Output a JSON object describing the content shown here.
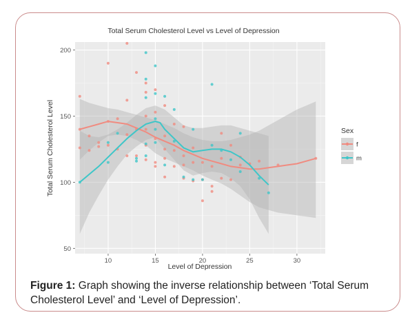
{
  "figure_caption": {
    "label": "Figure 1:",
    "text": " Graph showing the inverse relationship between ‘Total Serum Cholesterol Level’ and ‘Level of Depression’."
  },
  "chart_data": {
    "type": "scatter",
    "title": "Total Serum Cholesterol Level vs Level of Depression",
    "xlabel": "Level of Depression",
    "ylabel": "Total Serum Cholesterol Level",
    "xlim": [
      6.5,
      33
    ],
    "ylim": [
      46,
      206
    ],
    "xticks": [
      10,
      15,
      20,
      25,
      30
    ],
    "yticks": [
      50,
      100,
      150,
      200
    ],
    "grid": true,
    "legend": {
      "title": "Sex",
      "position": "right"
    },
    "colors": {
      "f": "#f08b80",
      "m": "#3ec6c8",
      "panel": "#ebebeb",
      "ribbon": "#b4b4b4"
    },
    "series": [
      {
        "name": "f",
        "points": [
          [
            7,
            165
          ],
          [
            7,
            140
          ],
          [
            7,
            126
          ],
          [
            8,
            124
          ],
          [
            8,
            135
          ],
          [
            9,
            127
          ],
          [
            9,
            130
          ],
          [
            10,
            190
          ],
          [
            10,
            146
          ],
          [
            10,
            128
          ],
          [
            11,
            148
          ],
          [
            11,
            125
          ],
          [
            12,
            205
          ],
          [
            12,
            162
          ],
          [
            12,
            136
          ],
          [
            12,
            120
          ],
          [
            13,
            183
          ],
          [
            13,
            140
          ],
          [
            13,
            120
          ],
          [
            14,
            175
          ],
          [
            14,
            168
          ],
          [
            14,
            150
          ],
          [
            14,
            140
          ],
          [
            14,
            128
          ],
          [
            14,
            117
          ],
          [
            15,
            170
          ],
          [
            15,
            153
          ],
          [
            15,
            133
          ],
          [
            15,
            115
          ],
          [
            15,
            112
          ],
          [
            16,
            158
          ],
          [
            16,
            135
          ],
          [
            16,
            125
          ],
          [
            16,
            118
          ],
          [
            16,
            104
          ],
          [
            17,
            144
          ],
          [
            17,
            124
          ],
          [
            17,
            112
          ],
          [
            18,
            142
          ],
          [
            18,
            120
          ],
          [
            18,
            113
          ],
          [
            18,
            103
          ],
          [
            19,
            126
          ],
          [
            19,
            115
          ],
          [
            19,
            101
          ],
          [
            20,
            115
          ],
          [
            20,
            102
          ],
          [
            20,
            86
          ],
          [
            21,
            112
          ],
          [
            21,
            97
          ],
          [
            21,
            93
          ],
          [
            22,
            137
          ],
          [
            22,
            118
          ],
          [
            22,
            103
          ],
          [
            23,
            128
          ],
          [
            23,
            102
          ],
          [
            24,
            119
          ],
          [
            24,
            113
          ],
          [
            25,
            114
          ],
          [
            26,
            116
          ],
          [
            28,
            113
          ],
          [
            32,
            118
          ]
        ],
        "trend": [
          [
            7,
            140
          ],
          [
            8,
            142
          ],
          [
            9,
            144
          ],
          [
            10,
            146
          ],
          [
            11,
            145
          ],
          [
            12,
            144
          ],
          [
            13,
            141
          ],
          [
            14,
            138
          ],
          [
            15,
            134
          ],
          [
            16,
            131
          ],
          [
            17,
            128
          ],
          [
            18,
            124
          ],
          [
            19,
            121
          ],
          [
            20,
            118
          ],
          [
            21,
            116
          ],
          [
            22,
            114
          ],
          [
            23,
            112
          ],
          [
            24,
            111
          ],
          [
            25,
            110
          ],
          [
            26,
            110
          ],
          [
            27,
            111
          ],
          [
            28,
            112
          ],
          [
            29,
            113
          ],
          [
            30,
            114
          ],
          [
            31,
            116
          ],
          [
            32,
            118
          ]
        ]
      },
      {
        "name": "m",
        "points": [
          [
            7,
            100
          ],
          [
            10,
            115
          ],
          [
            10,
            130
          ],
          [
            11,
            137
          ],
          [
            13,
            118
          ],
          [
            13,
            116
          ],
          [
            14,
            198
          ],
          [
            14,
            178
          ],
          [
            14,
            164
          ],
          [
            14,
            129
          ],
          [
            14,
            120
          ],
          [
            15,
            188
          ],
          [
            15,
            167
          ],
          [
            15,
            148
          ],
          [
            15,
            140
          ],
          [
            15,
            130
          ],
          [
            16,
            165
          ],
          [
            16,
            113
          ],
          [
            17,
            155
          ],
          [
            17,
            131
          ],
          [
            18,
            104
          ],
          [
            19,
            140
          ],
          [
            19,
            102
          ],
          [
            20,
            102
          ],
          [
            21,
            174
          ],
          [
            21,
            128
          ],
          [
            22,
            124
          ],
          [
            23,
            117
          ],
          [
            24,
            137
          ],
          [
            24,
            108
          ],
          [
            26,
            103
          ],
          [
            27,
            92
          ]
        ],
        "trend": [
          [
            7,
            100
          ],
          [
            8,
            106
          ],
          [
            9,
            112
          ],
          [
            10,
            119
          ],
          [
            11,
            126
          ],
          [
            12,
            133
          ],
          [
            13,
            139
          ],
          [
            14,
            144
          ],
          [
            15,
            146
          ],
          [
            15.5,
            145
          ],
          [
            16,
            140
          ],
          [
            17,
            133
          ],
          [
            18,
            126
          ],
          [
            19,
            123
          ],
          [
            20,
            124
          ],
          [
            21,
            125
          ],
          [
            22,
            125
          ],
          [
            23,
            123
          ],
          [
            24,
            119
          ],
          [
            25,
            113
          ],
          [
            26,
            105
          ],
          [
            27,
            98
          ]
        ]
      }
    ],
    "bands": {
      "f": {
        "upper": [
          [
            7,
            163
          ],
          [
            8,
            160
          ],
          [
            9,
            158
          ],
          [
            10,
            156
          ],
          [
            11,
            155
          ],
          [
            12,
            153
          ],
          [
            13,
            151
          ],
          [
            14,
            149
          ],
          [
            15,
            147
          ],
          [
            16,
            144
          ],
          [
            17,
            141
          ],
          [
            18,
            137
          ],
          [
            19,
            134
          ],
          [
            20,
            132
          ],
          [
            21,
            131
          ],
          [
            22,
            131
          ],
          [
            23,
            132
          ],
          [
            24,
            134
          ],
          [
            25,
            136
          ],
          [
            26,
            139
          ],
          [
            27,
            143
          ],
          [
            28,
            147
          ],
          [
            29,
            151
          ],
          [
            30,
            155
          ],
          [
            31,
            158
          ],
          [
            32,
            161
          ]
        ],
        "lower": [
          [
            7,
            117
          ],
          [
            8,
            124
          ],
          [
            9,
            130
          ],
          [
            10,
            135
          ],
          [
            11,
            136
          ],
          [
            12,
            135
          ],
          [
            13,
            132
          ],
          [
            14,
            128
          ],
          [
            15,
            122
          ],
          [
            16,
            118
          ],
          [
            17,
            115
          ],
          [
            18,
            112
          ],
          [
            19,
            109
          ],
          [
            20,
            105
          ],
          [
            21,
            102
          ],
          [
            22,
            99
          ],
          [
            23,
            95
          ],
          [
            24,
            90
          ],
          [
            25,
            85
          ],
          [
            26,
            81
          ],
          [
            27,
            79
          ],
          [
            28,
            77
          ],
          [
            29,
            76
          ],
          [
            30,
            75
          ],
          [
            31,
            74
          ],
          [
            32,
            73
          ]
        ]
      },
      "m": {
        "upper": [
          [
            7,
            139
          ],
          [
            8,
            135
          ],
          [
            9,
            134
          ],
          [
            10,
            136
          ],
          [
            11,
            140
          ],
          [
            12,
            145
          ],
          [
            13,
            151
          ],
          [
            14,
            156
          ],
          [
            15,
            158
          ],
          [
            16,
            155
          ],
          [
            17,
            149
          ],
          [
            18,
            143
          ],
          [
            19,
            141
          ],
          [
            20,
            141
          ],
          [
            21,
            142
          ],
          [
            22,
            143
          ],
          [
            23,
            143
          ],
          [
            24,
            141
          ],
          [
            25,
            139
          ],
          [
            26,
            137
          ],
          [
            27,
            135
          ]
        ],
        "lower": [
          [
            7,
            61
          ],
          [
            8,
            77
          ],
          [
            9,
            90
          ],
          [
            10,
            102
          ],
          [
            11,
            112
          ],
          [
            12,
            121
          ],
          [
            13,
            127
          ],
          [
            14,
            132
          ],
          [
            15,
            134
          ],
          [
            16,
            125
          ],
          [
            17,
            117
          ],
          [
            18,
            109
          ],
          [
            19,
            105
          ],
          [
            20,
            107
          ],
          [
            21,
            108
          ],
          [
            22,
            107
          ],
          [
            23,
            103
          ],
          [
            24,
            97
          ],
          [
            25,
            87
          ],
          [
            26,
            73
          ],
          [
            27,
            61
          ]
        ]
      }
    }
  }
}
